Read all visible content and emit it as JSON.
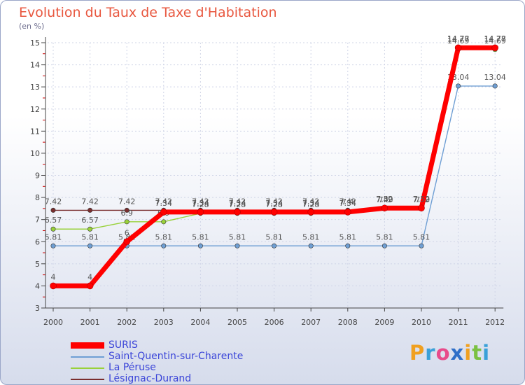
{
  "chart_data": {
    "type": "line",
    "title": "Evolution du Taux de Taxe d'Habitation",
    "ylabel": "(en %)",
    "ylim": [
      3,
      15
    ],
    "yticks": [
      "3",
      "4",
      "5",
      "6",
      "7",
      "8",
      "9",
      "10",
      "11",
      "12",
      "13",
      "14",
      "15"
    ],
    "categories": [
      "2000",
      "2001",
      "2002",
      "2003",
      "2004",
      "2005",
      "2006",
      "2007",
      "2008",
      "2009",
      "2010",
      "2011",
      "2012"
    ],
    "series": [
      {
        "name": "Lésignac-Durand",
        "color": "#7a2e2e",
        "values": [
          7.42,
          7.42,
          7.42,
          7.42,
          7.42,
          7.42,
          7.42,
          7.42,
          7.42,
          7.49,
          7.49,
          14.78,
          14.78
        ],
        "labels": [
          "7.42",
          "7.42",
          "7.42",
          "7.42",
          "7.42",
          "7.42",
          "7.42",
          "7.42",
          "7.42",
          "7.49",
          "7.49",
          "14.78",
          "14.78"
        ]
      },
      {
        "name": "La Péruse",
        "color": "#99d13a",
        "values": [
          6.57,
          6.57,
          6.9,
          6.9,
          7.28,
          7.28,
          7.28,
          7.28,
          7.4,
          7.5,
          7.5,
          14.69,
          14.69
        ],
        "labels": [
          "6.57",
          "6.57",
          "6.9",
          "6.9",
          "7.28",
          "7.28",
          "7.28",
          "7.28",
          "7.4",
          "7.5",
          "7.5",
          "14.69",
          "14.69"
        ]
      },
      {
        "name": "Saint-Quentin-sur-Charente",
        "color": "#6f9fd4",
        "values": [
          5.81,
          5.81,
          5.81,
          5.81,
          5.81,
          5.81,
          5.81,
          5.81,
          5.81,
          5.81,
          5.81,
          13.04,
          13.04
        ],
        "labels": [
          "5.81",
          "5.81",
          "5.81",
          "5.81",
          "5.81",
          "5.81",
          "5.81",
          "5.81",
          "5.81",
          "5.81",
          "5.81",
          "13.04",
          "13.04"
        ]
      },
      {
        "name": "SURIS",
        "color": "#ff0000",
        "values": [
          4,
          4,
          6,
          7.34,
          7.34,
          7.34,
          7.34,
          7.34,
          7.34,
          7.52,
          7.52,
          14.77,
          14.77
        ],
        "labels": [
          "4",
          "4",
          "6",
          "7.34",
          "7.34",
          "7.34",
          "7.34",
          "7.34",
          "7.34",
          "7.52",
          "7.52",
          "14.77",
          "14.77"
        ]
      }
    ]
  },
  "legend": {
    "items": [
      {
        "label": "SURIS",
        "color": "#ff0000"
      },
      {
        "label": "Saint-Quentin-sur-Charente",
        "color": "#6f9fd4"
      },
      {
        "label": "La Péruse",
        "color": "#99d13a"
      },
      {
        "label": "Lésignac-Durand",
        "color": "#7a2e2e"
      }
    ]
  },
  "logo": {
    "text": "Proxiti",
    "letters": [
      "P",
      "r",
      "o",
      "x",
      "i",
      "t",
      "i"
    ],
    "colors": [
      "#f0a020",
      "#3aa0d8",
      "#e84a8a",
      "#2f6fc8",
      "#f0a020",
      "#7ac142",
      "#3aa0d8"
    ]
  }
}
